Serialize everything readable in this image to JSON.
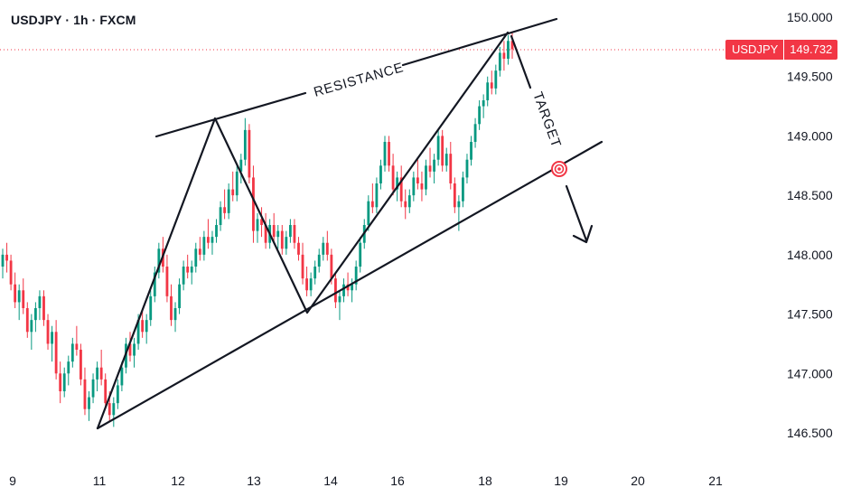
{
  "header": {
    "title": "USDJPY · 1h · FXCM"
  },
  "price_badge": {
    "symbol": "USDJPY",
    "value": "149.732"
  },
  "colors": {
    "up": "#089981",
    "down": "#f23645",
    "line": "#131722",
    "dotted": "#f23645",
    "text": "#131722"
  },
  "chart_data": {
    "type": "candlestick",
    "title": "USDJPY · 1h · FXCM",
    "ylim": [
      146.3,
      150.1
    ],
    "y_ticks": [
      150.0,
      149.5,
      149.0,
      148.5,
      148.0,
      147.5,
      147.0,
      146.5
    ],
    "y_tick_labels": [
      "150.000",
      "149.500",
      "149.000",
      "148.500",
      "148.000",
      "147.500",
      "147.000",
      "146.500"
    ],
    "x_tick_labels": [
      "9",
      "11",
      "12",
      "13",
      "14",
      "16",
      "18",
      "19",
      "20",
      "21"
    ],
    "last_price": 149.732,
    "annotations": {
      "resistance_label": "RESISTANCE",
      "target_label": "TARGET"
    },
    "key_points": [
      {
        "x": "11",
        "price": 146.55,
        "note": "low"
      },
      {
        "x": "12",
        "price": 149.15,
        "note": "peak"
      },
      {
        "x": "13",
        "price": 147.55,
        "note": "trough"
      },
      {
        "x": "18",
        "price": 149.85,
        "note": "high"
      },
      {
        "x": "19",
        "price": 148.72,
        "note": "target"
      }
    ],
    "ohlc": [
      [
        147.9,
        148.05,
        147.8,
        148.0
      ],
      [
        148.0,
        148.1,
        147.85,
        147.95
      ],
      [
        147.95,
        148.0,
        147.7,
        147.75
      ],
      [
        147.75,
        147.85,
        147.55,
        147.6
      ],
      [
        147.6,
        147.75,
        147.45,
        147.7
      ],
      [
        147.7,
        147.8,
        147.5,
        147.55
      ],
      [
        147.55,
        147.6,
        147.3,
        147.35
      ],
      [
        147.35,
        147.5,
        147.2,
        147.45
      ],
      [
        147.45,
        147.6,
        147.35,
        147.55
      ],
      [
        147.55,
        147.7,
        147.45,
        147.65
      ],
      [
        147.65,
        147.7,
        147.4,
        147.45
      ],
      [
        147.45,
        147.5,
        147.2,
        147.25
      ],
      [
        147.25,
        147.4,
        147.1,
        147.35
      ],
      [
        147.35,
        147.45,
        146.95,
        147.0
      ],
      [
        147.0,
        147.1,
        146.75,
        146.85
      ],
      [
        146.85,
        147.05,
        146.8,
        147.0
      ],
      [
        147.0,
        147.15,
        146.9,
        147.1
      ],
      [
        147.1,
        147.3,
        147.05,
        147.25
      ],
      [
        147.25,
        147.4,
        147.15,
        147.2
      ],
      [
        147.2,
        147.25,
        146.9,
        146.95
      ],
      [
        146.95,
        147.05,
        146.65,
        146.7
      ],
      [
        146.7,
        146.85,
        146.6,
        146.8
      ],
      [
        146.8,
        147.0,
        146.75,
        146.95
      ],
      [
        146.95,
        147.1,
        146.85,
        147.05
      ],
      [
        147.05,
        147.2,
        146.9,
        146.95
      ],
      [
        146.95,
        147.0,
        146.7,
        146.75
      ],
      [
        146.75,
        146.85,
        146.6,
        146.65
      ],
      [
        146.65,
        146.8,
        146.55,
        146.75
      ],
      [
        146.75,
        146.95,
        146.7,
        146.9
      ],
      [
        146.9,
        147.1,
        146.85,
        147.05
      ],
      [
        147.05,
        147.3,
        147.0,
        147.25
      ],
      [
        147.25,
        147.35,
        147.1,
        147.15
      ],
      [
        147.15,
        147.3,
        147.05,
        147.25
      ],
      [
        147.25,
        147.5,
        147.2,
        147.45
      ],
      [
        147.45,
        147.55,
        147.3,
        147.35
      ],
      [
        147.35,
        147.5,
        147.25,
        147.45
      ],
      [
        147.45,
        147.7,
        147.4,
        147.65
      ],
      [
        147.65,
        147.9,
        147.6,
        147.85
      ],
      [
        147.85,
        148.1,
        147.8,
        148.05
      ],
      [
        148.05,
        148.15,
        147.85,
        147.9
      ],
      [
        147.9,
        148.0,
        147.6,
        147.65
      ],
      [
        147.65,
        147.75,
        147.4,
        147.45
      ],
      [
        147.45,
        147.6,
        147.35,
        147.55
      ],
      [
        147.55,
        147.8,
        147.5,
        147.75
      ],
      [
        147.75,
        147.95,
        147.7,
        147.9
      ],
      [
        147.9,
        148.0,
        147.8,
        147.85
      ],
      [
        147.85,
        147.95,
        147.75,
        147.9
      ],
      [
        147.9,
        148.1,
        147.85,
        148.05
      ],
      [
        148.05,
        148.15,
        147.95,
        148.0
      ],
      [
        148.0,
        148.2,
        147.95,
        148.15
      ],
      [
        148.15,
        148.3,
        148.05,
        148.1
      ],
      [
        148.1,
        148.2,
        148.0,
        148.15
      ],
      [
        148.15,
        148.3,
        148.1,
        148.25
      ],
      [
        148.25,
        148.45,
        148.2,
        148.4
      ],
      [
        148.4,
        148.55,
        148.3,
        148.35
      ],
      [
        148.35,
        148.6,
        148.3,
        148.55
      ],
      [
        148.55,
        148.7,
        148.45,
        148.5
      ],
      [
        148.5,
        148.75,
        148.45,
        148.7
      ],
      [
        148.7,
        148.85,
        148.6,
        148.8
      ],
      [
        148.8,
        149.15,
        148.75,
        149.05
      ],
      [
        149.05,
        149.1,
        148.6,
        148.65
      ],
      [
        148.65,
        148.75,
        148.1,
        148.2
      ],
      [
        148.2,
        148.35,
        148.1,
        148.3
      ],
      [
        148.3,
        148.4,
        148.15,
        148.25
      ],
      [
        148.25,
        148.35,
        148.05,
        148.1
      ],
      [
        148.1,
        148.3,
        148.05,
        148.25
      ],
      [
        148.25,
        148.35,
        148.1,
        148.15
      ],
      [
        148.15,
        148.25,
        148.05,
        148.2
      ],
      [
        148.2,
        148.25,
        148.0,
        148.05
      ],
      [
        148.05,
        148.2,
        148.0,
        148.15
      ],
      [
        148.15,
        148.3,
        148.1,
        148.25
      ],
      [
        148.25,
        148.3,
        148.05,
        148.1
      ],
      [
        148.1,
        148.15,
        147.95,
        148.0
      ],
      [
        148.0,
        148.1,
        147.75,
        147.8
      ],
      [
        147.8,
        147.9,
        147.65,
        147.7
      ],
      [
        147.7,
        147.85,
        147.65,
        147.8
      ],
      [
        147.8,
        147.95,
        147.75,
        147.9
      ],
      [
        147.9,
        148.05,
        147.85,
        148.0
      ],
      [
        148.0,
        148.15,
        147.95,
        148.1
      ],
      [
        148.1,
        148.2,
        147.95,
        148.0
      ],
      [
        148.0,
        148.05,
        147.75,
        147.8
      ],
      [
        147.8,
        147.85,
        147.55,
        147.6
      ],
      [
        147.6,
        147.7,
        147.45,
        147.65
      ],
      [
        147.65,
        147.8,
        147.6,
        147.75
      ],
      [
        147.75,
        147.85,
        147.65,
        147.7
      ],
      [
        147.7,
        147.8,
        147.6,
        147.75
      ],
      [
        147.75,
        147.95,
        147.7,
        147.9
      ],
      [
        147.9,
        148.15,
        147.85,
        148.1
      ],
      [
        148.1,
        148.3,
        148.05,
        148.25
      ],
      [
        148.25,
        148.5,
        148.2,
        148.45
      ],
      [
        148.45,
        148.6,
        148.35,
        148.4
      ],
      [
        148.4,
        148.65,
        148.35,
        148.6
      ],
      [
        148.6,
        148.8,
        148.55,
        148.75
      ],
      [
        148.75,
        149.0,
        148.7,
        148.95
      ],
      [
        148.95,
        149.0,
        148.7,
        148.75
      ],
      [
        148.75,
        148.85,
        148.5,
        148.55
      ],
      [
        148.55,
        148.7,
        148.45,
        148.65
      ],
      [
        148.65,
        148.75,
        148.4,
        148.45
      ],
      [
        148.45,
        148.55,
        148.3,
        148.4
      ],
      [
        148.4,
        148.55,
        148.35,
        148.5
      ],
      [
        148.5,
        148.7,
        148.45,
        148.65
      ],
      [
        148.65,
        148.8,
        148.55,
        148.6
      ],
      [
        148.6,
        148.7,
        148.45,
        148.55
      ],
      [
        148.55,
        148.8,
        148.5,
        148.75
      ],
      [
        148.75,
        148.9,
        148.65,
        148.7
      ],
      [
        148.7,
        148.85,
        148.6,
        148.8
      ],
      [
        148.8,
        149.05,
        148.75,
        149.0
      ],
      [
        149.0,
        149.05,
        148.7,
        148.75
      ],
      [
        148.75,
        148.9,
        148.7,
        148.85
      ],
      [
        148.85,
        148.95,
        148.55,
        148.6
      ],
      [
        148.6,
        148.65,
        148.35,
        148.4
      ],
      [
        148.4,
        148.5,
        148.2,
        148.45
      ],
      [
        148.45,
        148.7,
        148.4,
        148.65
      ],
      [
        148.65,
        148.85,
        148.6,
        148.8
      ],
      [
        148.8,
        149.0,
        148.75,
        148.95
      ],
      [
        148.95,
        149.15,
        148.9,
        149.1
      ],
      [
        149.1,
        149.3,
        149.05,
        149.25
      ],
      [
        149.25,
        149.35,
        149.15,
        149.3
      ],
      [
        149.3,
        149.5,
        149.25,
        149.45
      ],
      [
        149.45,
        149.55,
        149.35,
        149.4
      ],
      [
        149.4,
        149.6,
        149.35,
        149.55
      ],
      [
        149.55,
        149.75,
        149.5,
        149.7
      ],
      [
        149.7,
        149.8,
        149.55,
        149.65
      ],
      [
        149.65,
        149.85,
        149.6,
        149.8
      ],
      [
        149.8,
        149.88,
        149.65,
        149.73
      ]
    ]
  }
}
